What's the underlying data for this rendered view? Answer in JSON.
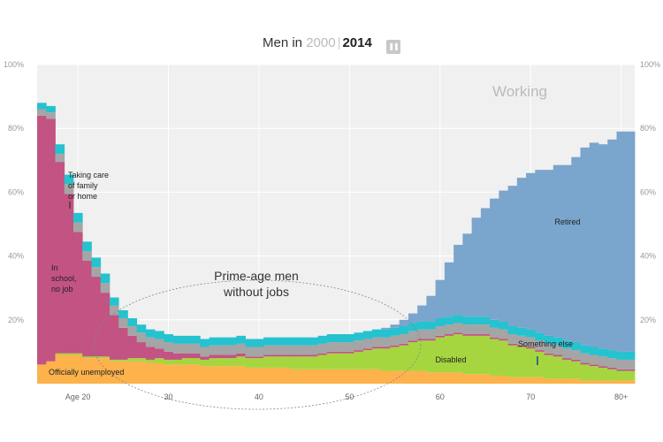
{
  "header": {
    "prefix": "Men in",
    "year_a": "2000",
    "separator": "|",
    "year_b": "2014",
    "pause_glyph": "❚❚"
  },
  "colors": {
    "unemployed": "#fdb24b",
    "disabled": "#a6d63f",
    "school": "#c25382",
    "caring": "#a5a5a5",
    "something_else": "#25c2cf",
    "retired": "#7aa5cc",
    "working_bg": "#f0f0f0"
  },
  "chart_data": {
    "type": "area",
    "title": "Men in 2000 | 2014",
    "x_axis": {
      "labels": [
        "Age 20",
        "30",
        "40",
        "50",
        "60",
        "70",
        "80+"
      ],
      "values": [
        20,
        30,
        40,
        50,
        60,
        70,
        80
      ]
    },
    "y_axis": {
      "ylim": [
        0,
        100
      ],
      "labels": [
        "20%",
        "40%",
        "60%",
        "80%",
        "100%"
      ],
      "values": [
        20,
        40,
        60,
        80,
        100
      ],
      "right_labels": true
    },
    "x": [
      16,
      17,
      18,
      19,
      20,
      21,
      22,
      23,
      24,
      25,
      26,
      27,
      28,
      29,
      30,
      31,
      32,
      33,
      34,
      35,
      36,
      37,
      38,
      39,
      40,
      41,
      42,
      43,
      44,
      45,
      46,
      47,
      48,
      49,
      50,
      51,
      52,
      53,
      54,
      55,
      56,
      57,
      58,
      59,
      60,
      61,
      62,
      63,
      64,
      65,
      66,
      67,
      68,
      69,
      70,
      71,
      72,
      73,
      74,
      75,
      76,
      77,
      78,
      79,
      80,
      81
    ],
    "series": [
      {
        "name": "Officially unemployed",
        "color": "#fdb24b",
        "values": [
          6,
          7,
          9,
          9,
          9,
          8,
          8,
          8,
          7,
          7,
          7,
          7,
          6.5,
          6.5,
          6,
          6,
          6,
          6,
          5.5,
          5.5,
          5.5,
          5.5,
          5.5,
          5,
          5,
          5,
          5,
          5,
          4.5,
          4.5,
          4.5,
          4.5,
          4.5,
          4.5,
          4.5,
          4.5,
          4.5,
          4.5,
          4,
          4,
          4,
          4,
          4,
          3.5,
          3.5,
          3.5,
          3.5,
          3,
          3,
          3,
          2.5,
          2.5,
          2,
          2,
          2,
          2,
          1.5,
          1.5,
          1.5,
          1.5,
          1,
          1,
          1,
          1,
          1,
          1
        ]
      },
      {
        "name": "Disabled",
        "color": "#a6d63f",
        "values": [
          0,
          0,
          0.5,
          0.5,
          0.5,
          0.5,
          0.5,
          0.5,
          0.5,
          0.5,
          1,
          1,
          1,
          1.5,
          1.5,
          1.5,
          2,
          2,
          2,
          2.5,
          2.5,
          2.5,
          3,
          3,
          3,
          3.5,
          3.5,
          3.5,
          4,
          4,
          4,
          4.5,
          5,
          5,
          5,
          5.5,
          6,
          6.5,
          7,
          7.5,
          8,
          9,
          9.5,
          10,
          11,
          11.5,
          12,
          12,
          12,
          12,
          11.5,
          11,
          10,
          9.5,
          9,
          8,
          7.5,
          7,
          6,
          5.5,
          5,
          4.5,
          4,
          3.5,
          3,
          3
        ]
      },
      {
        "name": "In school, no job",
        "color": "#c25382",
        "values": [
          78,
          76,
          60,
          50,
          38,
          30,
          25,
          20,
          14,
          10,
          7,
          5,
          4,
          3,
          2.5,
          2,
          1.5,
          1.5,
          1,
          1,
          1,
          1,
          1,
          0.5,
          0.5,
          0.5,
          0.5,
          0.5,
          0.5,
          0.5,
          0.5,
          0.5,
          0.5,
          0.5,
          0.5,
          0.5,
          0.5,
          0.5,
          0.5,
          0.5,
          0.5,
          0.5,
          0.5,
          0.5,
          0.5,
          0.5,
          0.5,
          0.5,
          0.5,
          0.5,
          0.5,
          0.5,
          0.5,
          0.5,
          0.5,
          0.5,
          0.5,
          0.5,
          0.5,
          0.5,
          0.5,
          0.5,
          0.5,
          0.5,
          0.5,
          0.5
        ]
      },
      {
        "name": "Taking care of family or home",
        "color": "#a5a5a5",
        "values": [
          2,
          2,
          2.5,
          3,
          3,
          3,
          3,
          3,
          3,
          3,
          3,
          3,
          3,
          3,
          3,
          3,
          3,
          3,
          3,
          3,
          3,
          3,
          3,
          3,
          3,
          3,
          3,
          3,
          3,
          3,
          3,
          3,
          3,
          3,
          3,
          3,
          3,
          3,
          3,
          3,
          3,
          3,
          3,
          3,
          3,
          3,
          3,
          3,
          3,
          3,
          3,
          3,
          3,
          3,
          3,
          3,
          3,
          3,
          3,
          3,
          3,
          3,
          3,
          3,
          3,
          3
        ]
      },
      {
        "name": "Something else",
        "color": "#25c2cf",
        "values": [
          2,
          2,
          3,
          3,
          3,
          3,
          3,
          3,
          2.5,
          2.5,
          2.5,
          2.5,
          2.5,
          2.5,
          2.5,
          2.5,
          2.5,
          2.5,
          2.5,
          2.5,
          2.5,
          2.5,
          2.5,
          2.5,
          2.5,
          2.5,
          2.5,
          2.5,
          2.5,
          2.5,
          2.5,
          2.5,
          2.5,
          2.5,
          2.5,
          2.5,
          2.5,
          2.5,
          2.5,
          2.5,
          2.5,
          2.5,
          2.5,
          2.5,
          2.5,
          2.5,
          2.5,
          2.5,
          2.5,
          2.5,
          2.5,
          2.5,
          2.5,
          2.5,
          2.5,
          2.5,
          2.5,
          2.5,
          2.5,
          2.5,
          2.5,
          2.5,
          2.5,
          2.5,
          2.5,
          2.5
        ]
      },
      {
        "name": "Retired",
        "color": "#7aa5cc",
        "values": [
          0,
          0,
          0,
          0,
          0,
          0,
          0,
          0,
          0,
          0,
          0,
          0,
          0,
          0,
          0,
          0,
          0,
          0,
          0,
          0,
          0,
          0,
          0,
          0,
          0,
          0,
          0,
          0,
          0,
          0,
          0,
          0,
          0,
          0,
          0,
          0,
          0,
          0,
          0.5,
          1,
          2,
          3,
          5,
          8,
          12,
          17,
          22,
          26,
          31,
          34,
          38,
          41,
          44,
          47,
          49,
          51,
          52,
          54,
          55,
          58,
          62,
          64,
          64,
          66,
          69,
          69
        ]
      }
    ],
    "top_category": "Working",
    "annotations": {
      "working": "Working",
      "school": [
        "In",
        "school,",
        "no job"
      ],
      "caring": [
        "Taking care",
        "of family",
        "or home"
      ],
      "unemployed": "Officially unemployed",
      "prime_age": [
        "Prime-age men",
        "without jobs"
      ],
      "retired": "Retired",
      "disabled": "Disabled",
      "something_else": "Something else"
    },
    "grid": true,
    "legend": "inline-labels"
  }
}
